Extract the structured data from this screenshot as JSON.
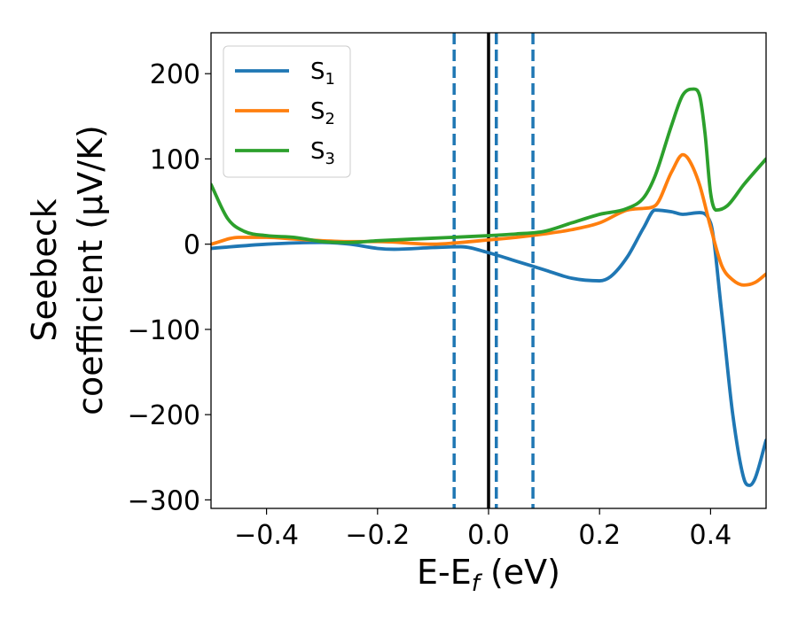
{
  "chart_data": {
    "type": "line",
    "title": "",
    "xlabel": {
      "main": "E-E",
      "sub": "f",
      "suffix": " (eV)"
    },
    "ylabel": {
      "line1": "Seebeck",
      "line2": "coefficient  (μV/K)"
    },
    "xlim": [
      -0.5,
      0.5
    ],
    "ylim": [
      -310,
      248
    ],
    "x_ticks": [
      -0.4,
      -0.2,
      0.0,
      0.2,
      0.4
    ],
    "x_tick_labels": [
      "−0.4",
      "−0.2",
      "0.0",
      "0.2",
      "0.4"
    ],
    "y_ticks": [
      200,
      100,
      0,
      -100,
      -200,
      -300
    ],
    "y_tick_labels": [
      "200",
      "100",
      "0",
      "−100",
      "−200",
      "−300"
    ],
    "grid": false,
    "legend_position": "top-left",
    "vertical_lines": [
      {
        "x": -0.062,
        "style": "dashed",
        "color": "#1f77b4"
      },
      {
        "x": 0.0,
        "style": "solid",
        "color": "#000000"
      },
      {
        "x": 0.014,
        "style": "dashed",
        "color": "#1f77b4"
      },
      {
        "x": 0.08,
        "style": "dashed",
        "color": "#1f77b4"
      }
    ],
    "series": [
      {
        "name": "S",
        "sub": "1",
        "color": "#1f77b4",
        "x": [
          -0.5,
          -0.4,
          -0.3,
          -0.25,
          -0.2,
          -0.17,
          -0.1,
          -0.05,
          0.0,
          0.05,
          0.1,
          0.15,
          0.2,
          0.22,
          0.25,
          0.28,
          0.3,
          0.33,
          0.35,
          0.38,
          0.4,
          0.42,
          0.44,
          0.46,
          0.47,
          0.48,
          0.5
        ],
        "y": [
          -5,
          0,
          2,
          0,
          -5,
          -6,
          -4,
          -3,
          -10,
          -20,
          -30,
          -40,
          -43,
          -38,
          -15,
          20,
          40,
          38,
          35,
          37,
          25,
          -80,
          -200,
          -275,
          -283,
          -275,
          -230
        ]
      },
      {
        "name": "S",
        "sub": "2",
        "color": "#ff7f0e",
        "x": [
          -0.5,
          -0.45,
          -0.4,
          -0.35,
          -0.3,
          -0.25,
          -0.2,
          -0.1,
          -0.05,
          0.0,
          0.05,
          0.1,
          0.15,
          0.2,
          0.25,
          0.28,
          0.3,
          0.33,
          0.35,
          0.36,
          0.38,
          0.4,
          0.42,
          0.44,
          0.46,
          0.48,
          0.5
        ],
        "y": [
          0,
          8,
          8,
          6,
          4,
          3,
          3,
          0,
          2,
          5,
          8,
          12,
          17,
          25,
          40,
          42,
          45,
          85,
          105,
          100,
          70,
          20,
          -25,
          -42,
          -48,
          -45,
          -35
        ]
      },
      {
        "name": "S",
        "sub": "3",
        "color": "#2ca02c",
        "x": [
          -0.5,
          -0.47,
          -0.44,
          -0.4,
          -0.35,
          -0.3,
          -0.25,
          -0.2,
          -0.1,
          0.0,
          0.05,
          0.1,
          0.15,
          0.2,
          0.25,
          0.28,
          0.3,
          0.33,
          0.35,
          0.37,
          0.38,
          0.39,
          0.4,
          0.41,
          0.43,
          0.46,
          0.5
        ],
        "y": [
          70,
          30,
          15,
          10,
          8,
          3,
          2,
          4,
          7,
          10,
          12,
          15,
          25,
          35,
          42,
          55,
          80,
          140,
          175,
          182,
          175,
          130,
          60,
          40,
          45,
          70,
          100
        ]
      }
    ]
  }
}
